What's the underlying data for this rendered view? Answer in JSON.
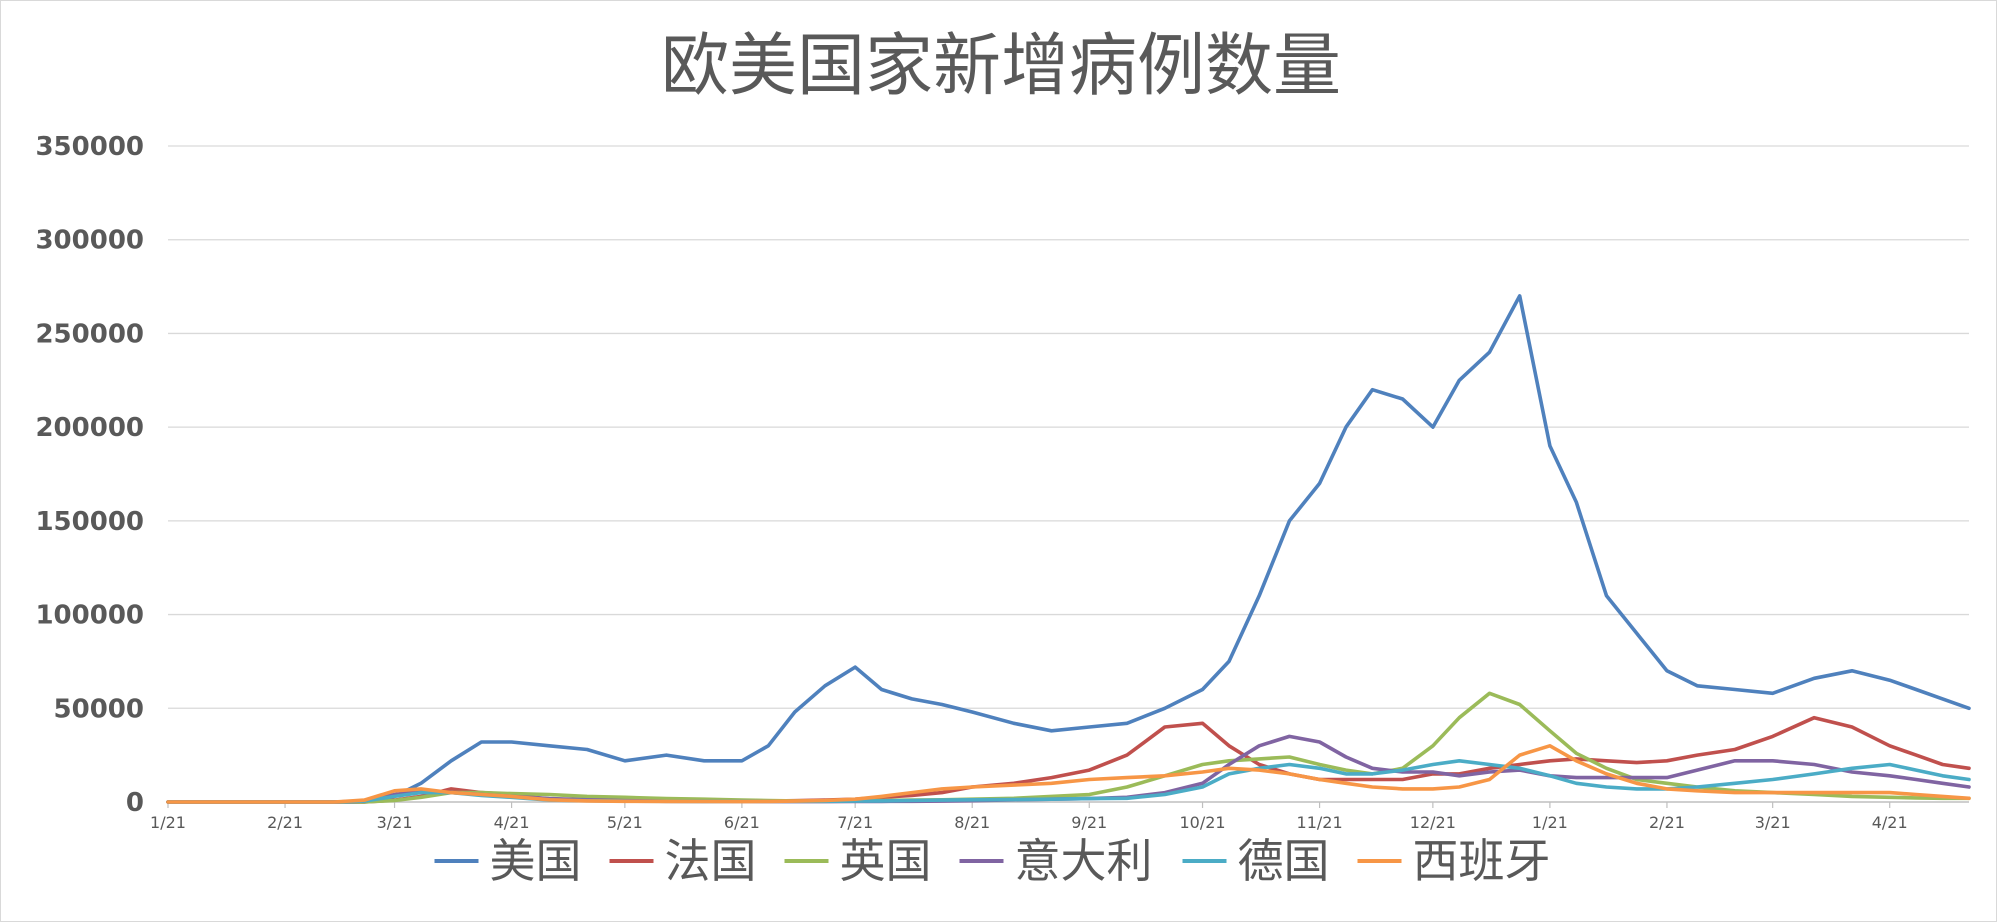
{
  "chart_data": {
    "type": "line",
    "title": "欧美国家新增病例数量",
    "xlabel": "",
    "ylabel": "",
    "ylim": [
      0,
      350000
    ],
    "y_ticks": [
      0,
      50000,
      100000,
      150000,
      200000,
      250000,
      300000,
      350000
    ],
    "x_ticks": [
      "1/21",
      "2/21",
      "3/21",
      "4/21",
      "5/21",
      "6/21",
      "7/21",
      "8/21",
      "9/21",
      "10/21",
      "11/21",
      "12/21",
      "1/21",
      "2/21",
      "3/21",
      "4/21"
    ],
    "x": [
      "2020-01-21",
      "2020-02-05",
      "2020-02-21",
      "2020-03-05",
      "2020-03-13",
      "2020-03-21",
      "2020-03-28",
      "2020-04-05",
      "2020-04-13",
      "2020-04-21",
      "2020-05-01",
      "2020-05-11",
      "2020-05-21",
      "2020-06-01",
      "2020-06-11",
      "2020-06-21",
      "2020-06-28",
      "2020-07-05",
      "2020-07-13",
      "2020-07-21",
      "2020-07-28",
      "2020-08-05",
      "2020-08-13",
      "2020-08-21",
      "2020-09-01",
      "2020-09-11",
      "2020-09-21",
      "2020-10-01",
      "2020-10-11",
      "2020-10-21",
      "2020-10-28",
      "2020-11-05",
      "2020-11-13",
      "2020-11-21",
      "2020-11-28",
      "2020-12-05",
      "2020-12-13",
      "2020-12-21",
      "2020-12-28",
      "2021-01-05",
      "2021-01-13",
      "2021-01-21",
      "2021-01-28",
      "2021-02-05",
      "2021-02-13",
      "2021-02-21",
      "2021-03-01",
      "2021-03-11",
      "2021-03-21",
      "2021-04-01",
      "2021-04-11",
      "2021-04-21",
      "2021-04-28",
      "2021-05-05",
      "2021-05-12"
    ],
    "series": [
      {
        "name": "美国",
        "color": "#4f81bd",
        "values": [
          0,
          0,
          0,
          0,
          0,
          3000,
          10000,
          22000,
          32000,
          32000,
          30000,
          28000,
          22000,
          25000,
          22000,
          22000,
          30000,
          48000,
          62000,
          72000,
          60000,
          55000,
          52000,
          48000,
          42000,
          38000,
          40000,
          42000,
          50000,
          60000,
          75000,
          110000,
          150000,
          170000,
          200000,
          220000,
          215000,
          200000,
          225000,
          240000,
          270000,
          190000,
          160000,
          110000,
          90000,
          70000,
          62000,
          60000,
          58000,
          66000,
          70000,
          65000,
          60000,
          55000,
          50000
        ]
      },
      {
        "name": "法国",
        "color": "#c0504d",
        "values": [
          0,
          0,
          0,
          0,
          0,
          1000,
          3000,
          7000,
          5000,
          4000,
          1500,
          1200,
          800,
          600,
          500,
          500,
          500,
          700,
          1000,
          1500,
          2500,
          3500,
          5000,
          8000,
          10000,
          13000,
          17000,
          25000,
          40000,
          42000,
          30000,
          20000,
          15000,
          12000,
          12000,
          12000,
          12000,
          15000,
          15000,
          18000,
          20000,
          22000,
          23000,
          22000,
          21000,
          22000,
          25000,
          28000,
          35000,
          45000,
          40000,
          30000,
          25000,
          20000,
          18000
        ]
      },
      {
        "name": "英国",
        "color": "#9bbb59",
        "values": [
          0,
          0,
          0,
          0,
          0,
          800,
          2500,
          5000,
          5000,
          4500,
          4000,
          3000,
          2500,
          1800,
          1500,
          1000,
          800,
          600,
          600,
          700,
          800,
          1000,
          1200,
          1500,
          2000,
          3000,
          4000,
          8000,
          14000,
          20000,
          22000,
          23000,
          24000,
          20000,
          17000,
          15000,
          18000,
          30000,
          45000,
          58000,
          52000,
          38000,
          26000,
          18000,
          12000,
          10000,
          8000,
          6000,
          5000,
          4000,
          3000,
          2500,
          2200,
          2000,
          2000
        ]
      },
      {
        "name": "意大利",
        "color": "#8064a2",
        "values": [
          0,
          0,
          0,
          0,
          500,
          4000,
          5500,
          5000,
          4000,
          3000,
          1800,
          1200,
          700,
          400,
          300,
          250,
          200,
          200,
          200,
          250,
          300,
          400,
          500,
          700,
          1200,
          1500,
          1800,
          2500,
          5000,
          10000,
          20000,
          30000,
          35000,
          32000,
          24000,
          18000,
          16000,
          16000,
          14000,
          16000,
          17000,
          14000,
          13000,
          13000,
          13000,
          13000,
          17000,
          22000,
          22000,
          20000,
          16000,
          14000,
          12000,
          10000,
          8000
        ]
      },
      {
        "name": "德国",
        "color": "#4bacc6",
        "values": [
          0,
          0,
          0,
          0,
          500,
          3000,
          5000,
          5000,
          3500,
          2500,
          1000,
          700,
          500,
          400,
          300,
          400,
          400,
          400,
          400,
          500,
          600,
          800,
          1000,
          1200,
          1300,
          1500,
          1800,
          2000,
          4000,
          8000,
          15000,
          18000,
          20000,
          18000,
          15000,
          15000,
          17000,
          20000,
          22000,
          20000,
          18000,
          14000,
          10000,
          8000,
          7000,
          7000,
          8000,
          10000,
          12000,
          15000,
          18000,
          20000,
          17000,
          14000,
          12000
        ]
      },
      {
        "name": "西班牙",
        "color": "#f79646",
        "values": [
          0,
          0,
          0,
          0,
          1000,
          6000,
          7000,
          5000,
          4000,
          3000,
          1200,
          600,
          400,
          300,
          250,
          200,
          300,
          500,
          800,
          1500,
          3000,
          5000,
          7000,
          8000,
          9000,
          10000,
          12000,
          13000,
          14000,
          16000,
          18000,
          17000,
          15000,
          12000,
          10000,
          8000,
          7000,
          7000,
          8000,
          12000,
          25000,
          30000,
          22000,
          15000,
          10000,
          7000,
          6000,
          5000,
          5000,
          5000,
          5000,
          5000,
          4000,
          3000,
          2000
        ]
      }
    ],
    "grid": true,
    "legend": "bottom-center"
  }
}
